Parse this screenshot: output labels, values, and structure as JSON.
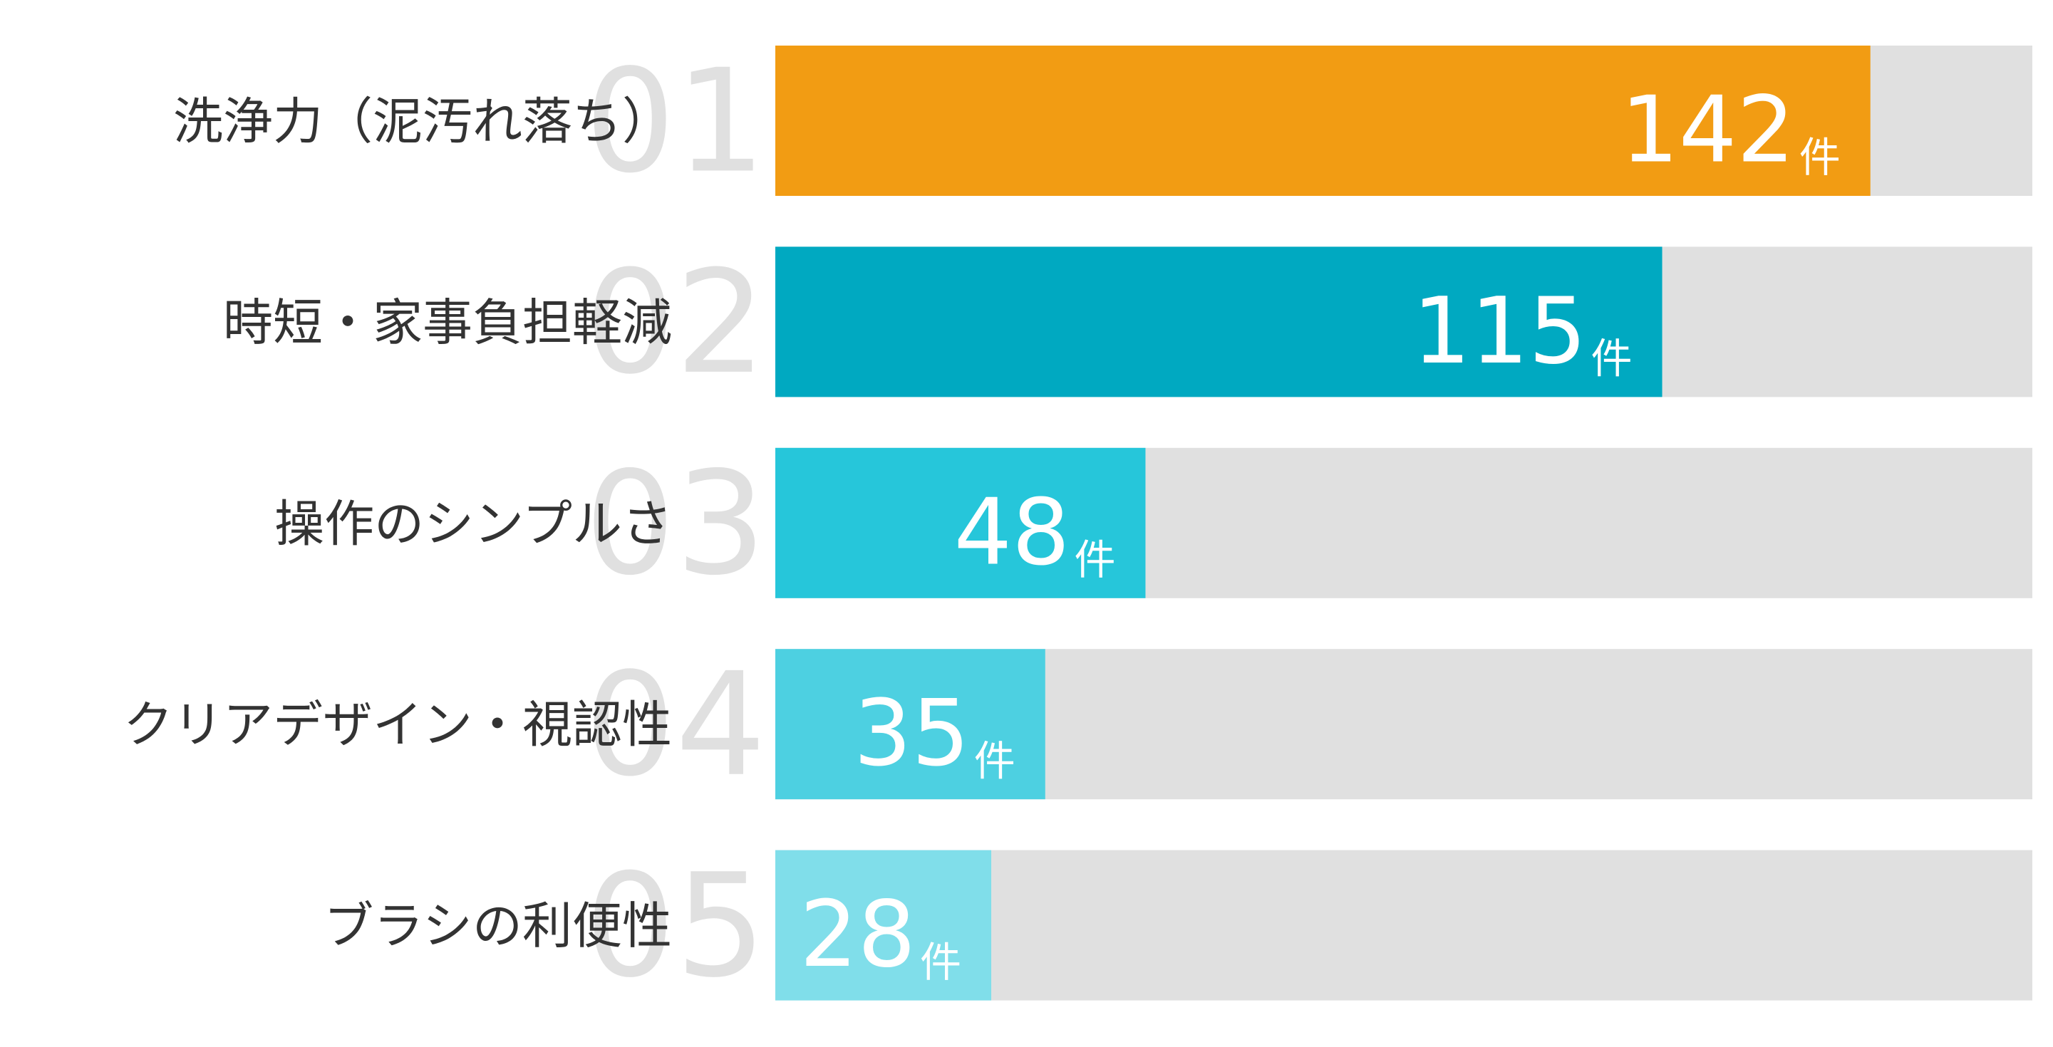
{
  "chart_data": {
    "type": "bar",
    "orientation": "horizontal",
    "ranks": [
      "01",
      "02",
      "03",
      "04",
      "05"
    ],
    "categories": [
      "洗浄力（泥汚れ落ち）",
      "時短・家事負担軽減",
      "操作のシンプルさ",
      "クリアデザイン・視認性",
      "ブラシの利便性"
    ],
    "values": [
      142,
      115,
      48,
      35,
      28
    ],
    "value_unit": "件",
    "colors": [
      "#f29c13",
      "#00a9c1",
      "#26c6da",
      "#4dd0e1",
      "#80deea"
    ],
    "track_color": "#e0e0e0",
    "xlim": [
      0,
      163
    ]
  }
}
